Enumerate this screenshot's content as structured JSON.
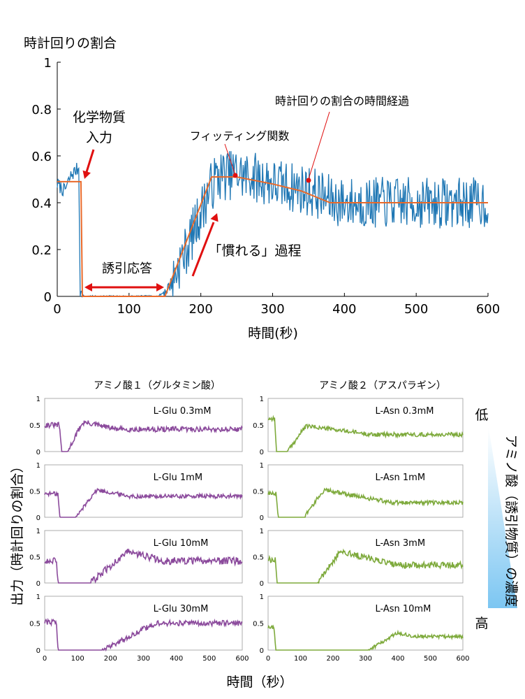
{
  "chart_data": [
    {
      "type": "line",
      "ylabel": "時計回りの割合",
      "xlabel": "時間(秒)",
      "xlim": [
        0,
        600
      ],
      "ylim": [
        0,
        1
      ],
      "x_ticks": [
        0,
        100,
        200,
        300,
        400,
        500,
        600
      ],
      "y_ticks": [
        0,
        0.2,
        0.4,
        0.6,
        0.8,
        1
      ],
      "y_tick_labels": [
        "0",
        "0.2",
        "0.4",
        "0.6",
        "0.8",
        "1"
      ],
      "colors": {
        "data": "#1f77b4",
        "fit": "#e8692a",
        "annotation": "#e01010"
      },
      "series": [
        {
          "name": "時計回りの割合の時間経過",
          "x": [
            0,
            10,
            20,
            30,
            32,
            35,
            40,
            60,
            80,
            100,
            120,
            140,
            150,
            160,
            170,
            180,
            190,
            200,
            210,
            220,
            230,
            240,
            250,
            260,
            270,
            280,
            290,
            300,
            320,
            340,
            360,
            380,
            400,
            450,
            500,
            550,
            600
          ],
          "y": [
            0.48,
            0.45,
            0.52,
            0.55,
            0.02,
            0.0,
            0.0,
            0.0,
            0.0,
            0.0,
            0.0,
            0.0,
            0.02,
            0.06,
            0.14,
            0.2,
            0.28,
            0.36,
            0.44,
            0.5,
            0.52,
            0.52,
            0.53,
            0.51,
            0.52,
            0.5,
            0.5,
            0.48,
            0.47,
            0.46,
            0.44,
            0.41,
            0.4,
            0.4,
            0.4,
            0.4,
            0.4
          ]
        },
        {
          "name": "フィッティング関数",
          "x": [
            0,
            33,
            35,
            150,
            215,
            250,
            300,
            340,
            380,
            600
          ],
          "y": [
            0.49,
            0.49,
            0.0,
            0.0,
            0.51,
            0.51,
            0.48,
            0.45,
            0.4,
            0.4
          ]
        }
      ],
      "annotations": [
        {
          "text": "化学物質",
          "text2": "入力"
        },
        {
          "text": "誘引応答"
        },
        {
          "text": "「慣れる」過程"
        },
        {
          "text": "フィッティング関数"
        },
        {
          "text": "時計回りの割合の時間経過"
        }
      ]
    },
    {
      "type": "line",
      "ylabel": "出力（時計回りの割合）",
      "xlabel": "時間（秒）",
      "xlim": [
        0,
        600
      ],
      "ylim": [
        0,
        1
      ],
      "x_ticks": [
        0,
        100,
        200,
        300,
        400,
        500,
        600
      ],
      "y_ticks": [
        0,
        0.5,
        1
      ],
      "y_tick_labels": [
        "0",
        "0.5",
        "1"
      ],
      "colors": {
        "glu": "#8b4a9c",
        "asn": "#7eaa3c",
        "gradient_top": "#ffffff",
        "gradient_bottom": "#7cc6f2"
      },
      "columns": [
        {
          "title": "アミノ酸１（グルタミン酸）",
          "color": "#8b4a9c"
        },
        {
          "title": "アミノ酸２（アスパラギン）",
          "color": "#7eaa3c"
        }
      ],
      "concentration_axis": {
        "label": "アミノ酸（誘引物質）の濃度",
        "low": "低",
        "high": "高"
      },
      "panels": [
        {
          "label": "L-Glu  0.3mM",
          "column": 0,
          "row": 0,
          "pre": 0.5,
          "drop": 45,
          "low_end": 70,
          "rise_end": 110,
          "peak": 0.55,
          "peak_x": 120,
          "settle_x": 220,
          "end": 0.42,
          "noise": 0.05
        },
        {
          "label": "L-Glu  1mM",
          "column": 0,
          "row": 1,
          "pre": 0.45,
          "drop": 40,
          "low_end": 95,
          "rise_end": 150,
          "peak": 0.52,
          "peak_x": 160,
          "settle_x": 260,
          "end": 0.4,
          "noise": 0.04
        },
        {
          "label": "L-Glu  10mM",
          "column": 0,
          "row": 2,
          "pre": 0.43,
          "drop": 35,
          "low_end": 140,
          "rise_end": 240,
          "peak": 0.6,
          "peak_x": 250,
          "settle_x": 360,
          "end": 0.42,
          "noise": 0.07
        },
        {
          "label": "L-Glu  30mM",
          "column": 0,
          "row": 3,
          "pre": 0.52,
          "drop": 35,
          "low_end": 175,
          "rise_end": 320,
          "peak": 0.5,
          "peak_x": 340,
          "settle_x": 450,
          "end": 0.5,
          "noise": 0.05
        },
        {
          "label": "L-Asn  0.3mM",
          "column": 1,
          "row": 0,
          "pre": 0.62,
          "drop": 20,
          "low_end": 60,
          "rise_end": 110,
          "peak": 0.48,
          "peak_x": 120,
          "settle_x": 320,
          "end": 0.32,
          "noise": 0.04
        },
        {
          "label": "L-Asn  1mM",
          "column": 1,
          "row": 1,
          "pre": 0.45,
          "drop": 25,
          "low_end": 110,
          "rise_end": 165,
          "peak": 0.52,
          "peak_x": 175,
          "settle_x": 380,
          "end": 0.28,
          "noise": 0.04
        },
        {
          "label": "L-Asn  3mM",
          "column": 1,
          "row": 2,
          "pre": 0.45,
          "drop": 22,
          "low_end": 150,
          "rise_end": 215,
          "peak": 0.6,
          "peak_x": 225,
          "settle_x": 400,
          "end": 0.34,
          "noise": 0.06
        },
        {
          "label": "L-Asn  10mM",
          "column": 1,
          "row": 3,
          "pre": 0.42,
          "drop": 18,
          "low_end": 310,
          "rise_end": 390,
          "peak": 0.32,
          "peak_x": 400,
          "settle_x": 450,
          "end": 0.25,
          "noise": 0.03
        }
      ]
    }
  ]
}
